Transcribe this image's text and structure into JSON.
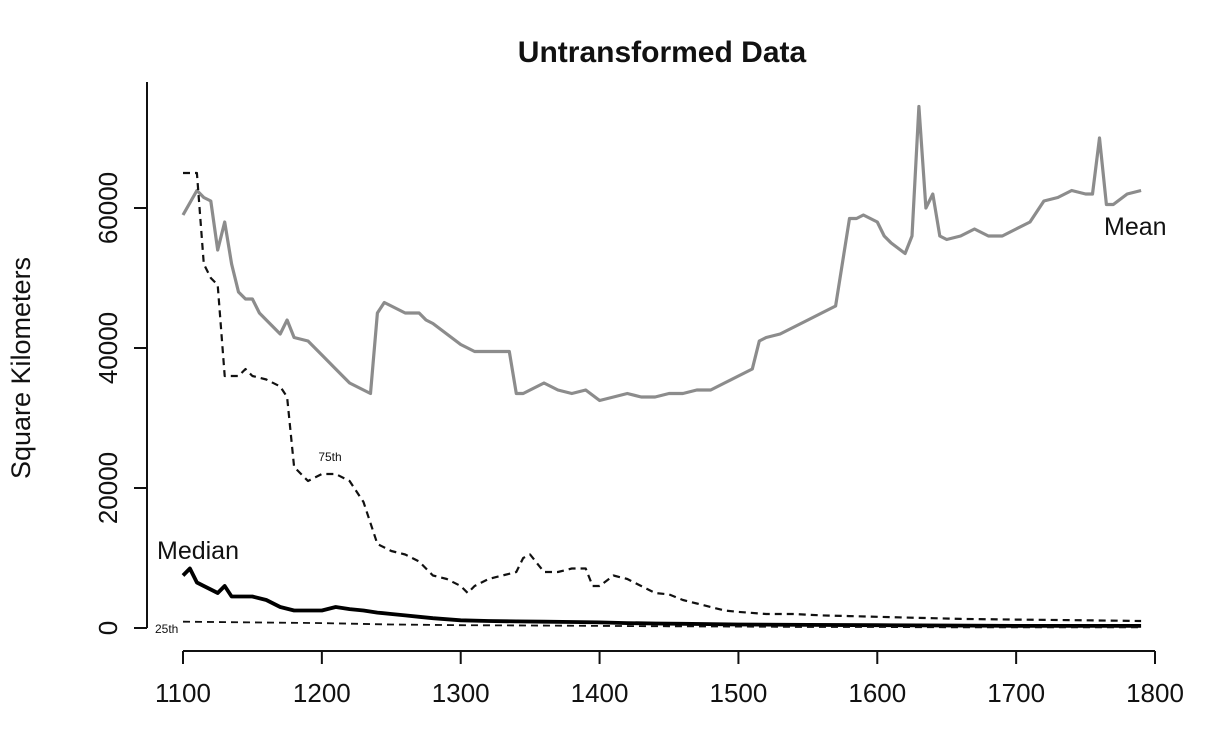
{
  "chart_data": {
    "type": "line",
    "title": "Untransformed Data",
    "ylabel": "Square Kilometers",
    "xlabel": "",
    "xlim": [
      1100,
      1800
    ],
    "ylim": [
      0,
      75000
    ],
    "x_ticks": [
      "1100",
      "1200",
      "1300",
      "1400",
      "1500",
      "1600",
      "1700",
      "1800"
    ],
    "y_ticks": [
      "0",
      "20000",
      "40000",
      "60000"
    ],
    "grid": false,
    "legend": "none",
    "annotations": [
      {
        "text": "Mean",
        "series": "mean"
      },
      {
        "text": "75th",
        "series": "p75"
      },
      {
        "text": "Median",
        "series": "median"
      },
      {
        "text": "25th",
        "series": "p25"
      }
    ],
    "series": [
      {
        "key": "mean",
        "color": "#8c8c8c",
        "style": "solid",
        "x": [
          1100,
          1110,
          1115,
          1120,
          1125,
          1130,
          1135,
          1140,
          1145,
          1150,
          1155,
          1160,
          1170,
          1175,
          1180,
          1190,
          1200,
          1210,
          1220,
          1230,
          1235,
          1240,
          1245,
          1250,
          1260,
          1270,
          1275,
          1280,
          1290,
          1300,
          1310,
          1320,
          1330,
          1335,
          1340,
          1345,
          1350,
          1360,
          1370,
          1380,
          1390,
          1400,
          1410,
          1420,
          1430,
          1440,
          1450,
          1460,
          1470,
          1480,
          1490,
          1500,
          1510,
          1515,
          1520,
          1530,
          1540,
          1550,
          1560,
          1570,
          1580,
          1585,
          1590,
          1600,
          1605,
          1610,
          1620,
          1625,
          1630,
          1635,
          1640,
          1645,
          1650,
          1660,
          1670,
          1680,
          1690,
          1700,
          1710,
          1720,
          1730,
          1740,
          1750,
          1755,
          1760,
          1765,
          1770,
          1780,
          1790
        ],
        "y": [
          59000,
          62500,
          61500,
          61000,
          54000,
          58000,
          52000,
          48000,
          47000,
          47000,
          45000,
          44000,
          42000,
          44000,
          41500,
          41000,
          39000,
          37000,
          35000,
          34000,
          33500,
          45000,
          46500,
          46000,
          45000,
          45000,
          44000,
          43500,
          42000,
          40500,
          39500,
          39500,
          39500,
          39500,
          33500,
          33500,
          34000,
          35000,
          34000,
          33500,
          34000,
          32500,
          33000,
          33500,
          33000,
          33000,
          33500,
          33500,
          34000,
          34000,
          35000,
          36000,
          37000,
          41000,
          41500,
          42000,
          43000,
          44000,
          45000,
          46000,
          58500,
          58500,
          59000,
          58000,
          56000,
          55000,
          53500,
          56000,
          74500,
          60000,
          62000,
          56000,
          55500,
          56000,
          57000,
          56000,
          56000,
          57000,
          58000,
          61000,
          61500,
          62500,
          62000,
          62000,
          70000,
          60500,
          60500,
          62000,
          62500
        ]
      },
      {
        "key": "p75",
        "color": "#111111",
        "style": "dashed",
        "x": [
          1100,
          1110,
          1115,
          1120,
          1125,
          1130,
          1140,
          1145,
          1150,
          1160,
          1170,
          1175,
          1180,
          1190,
          1200,
          1210,
          1220,
          1230,
          1240,
          1250,
          1260,
          1270,
          1280,
          1290,
          1300,
          1305,
          1310,
          1320,
          1330,
          1340,
          1345,
          1350,
          1360,
          1370,
          1380,
          1390,
          1395,
          1400,
          1410,
          1420,
          1430,
          1440,
          1450,
          1460,
          1470,
          1480,
          1490,
          1500,
          1520,
          1540,
          1560,
          1580,
          1600,
          1620,
          1640,
          1660,
          1700,
          1750,
          1790
        ],
        "y": [
          65000,
          65000,
          52000,
          50000,
          49000,
          36000,
          36000,
          37000,
          36000,
          35500,
          34500,
          33000,
          23000,
          21000,
          22000,
          22000,
          21000,
          18000,
          12000,
          11000,
          10500,
          9500,
          7500,
          7000,
          6000,
          5000,
          6000,
          7000,
          7500,
          8000,
          10000,
          10500,
          8000,
          8000,
          8500,
          8500,
          6000,
          6000,
          7500,
          7000,
          6000,
          5000,
          4800,
          4000,
          3500,
          3000,
          2500,
          2300,
          2000,
          2000,
          1800,
          1700,
          1600,
          1500,
          1400,
          1300,
          1200,
          1100,
          1000
        ]
      },
      {
        "key": "median",
        "color": "#000000",
        "style": "solid",
        "x": [
          1100,
          1105,
          1110,
          1115,
          1120,
          1125,
          1130,
          1135,
          1140,
          1150,
          1160,
          1170,
          1180,
          1200,
          1210,
          1220,
          1230,
          1240,
          1250,
          1260,
          1270,
          1280,
          1300,
          1320,
          1340,
          1360,
          1380,
          1400,
          1420,
          1440,
          1460,
          1480,
          1500,
          1550,
          1600,
          1650,
          1700,
          1750,
          1790
        ],
        "y": [
          7500,
          8500,
          6500,
          6000,
          5500,
          5000,
          6000,
          4500,
          4500,
          4500,
          4000,
          3000,
          2500,
          2500,
          3000,
          2700,
          2500,
          2200,
          2000,
          1800,
          1600,
          1400,
          1100,
          1000,
          950,
          900,
          850,
          800,
          700,
          650,
          600,
          550,
          500,
          450,
          400,
          350,
          300,
          300,
          300
        ]
      },
      {
        "key": "p25",
        "color": "#111111",
        "style": "dashed",
        "x": [
          1100,
          1150,
          1200,
          1250,
          1300,
          1350,
          1400,
          1450,
          1500,
          1550,
          1600,
          1650,
          1700,
          1750,
          1790
        ],
        "y": [
          900,
          800,
          700,
          500,
          400,
          350,
          300,
          250,
          200,
          150,
          150,
          100,
          100,
          100,
          100
        ]
      }
    ]
  }
}
